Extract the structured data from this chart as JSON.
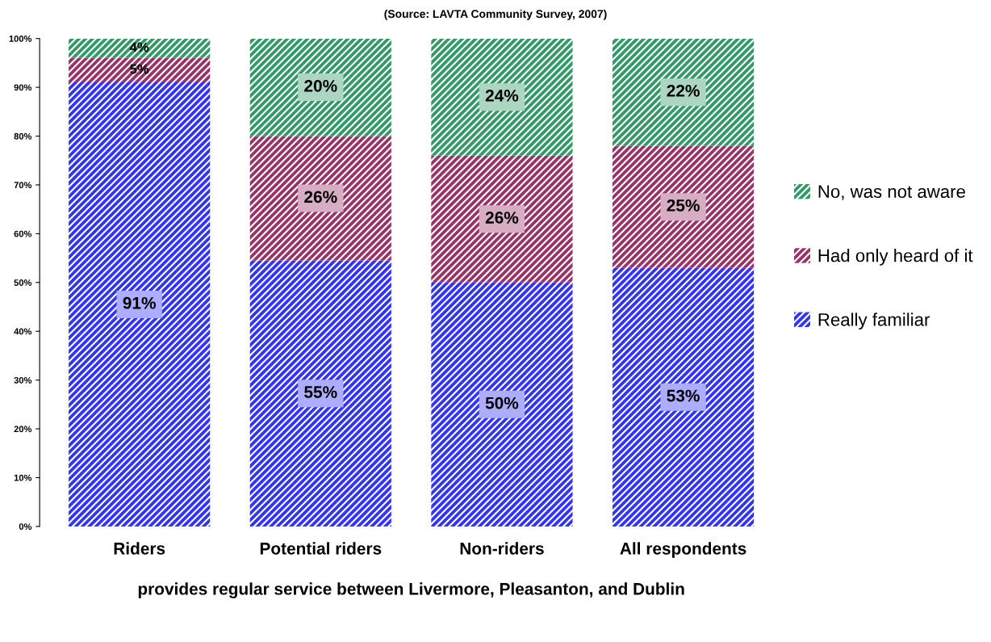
{
  "chart_data": {
    "type": "bar",
    "stacked": true,
    "title": "(Source: LAVTA Community Survey, 2007)",
    "xlabel": "provides regular service between Livermore, Pleasanton, and Dublin",
    "categories": [
      "Riders",
      "Potential riders",
      "Non-riders",
      "All respondents"
    ],
    "series": [
      {
        "name": "Really familiar",
        "color": "#3333ff",
        "values": [
          91,
          54.5,
          50,
          53
        ],
        "value_labels": [
          "91%",
          "55%",
          "50%",
          "53%"
        ]
      },
      {
        "name": "Had only heard of it",
        "color": "#993366",
        "values": [
          5,
          25.5,
          26,
          25
        ],
        "value_labels": [
          "5%",
          "26%",
          "26%",
          "25%"
        ]
      },
      {
        "name": "No, was not aware",
        "color": "#339966",
        "values": [
          4,
          20,
          24,
          22
        ],
        "value_labels": [
          "4%",
          "20%",
          "24%",
          "22%"
        ]
      }
    ],
    "ylim": [
      0,
      100
    ],
    "yticks": [
      {
        "value": 0,
        "label": "0%"
      },
      {
        "value": 10,
        "label": "10%"
      },
      {
        "value": 20,
        "label": "20%"
      },
      {
        "value": 30,
        "label": "30%"
      },
      {
        "value": 40,
        "label": "40%"
      },
      {
        "value": 50,
        "label": "50%"
      },
      {
        "value": 60,
        "label": "60%"
      },
      {
        "value": 70,
        "label": "70%"
      },
      {
        "value": 80,
        "label": "80%"
      },
      {
        "value": 90,
        "label": "90%"
      },
      {
        "value": 100,
        "label": "100%"
      }
    ],
    "grid": false,
    "legend": "right"
  }
}
